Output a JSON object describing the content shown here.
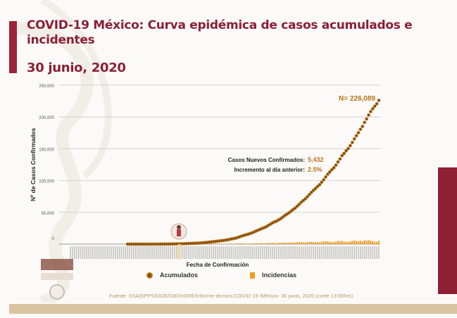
{
  "slide": {
    "title": "COVID-19 México: Curva epidémica de casos acumulados e incidentes",
    "date": "30 junio, 2020",
    "source": "Fuente: SSA|SPPS/DGE/DIE/InDRE/Informe técnico.COVID-19 /México- 30 junio, 2020 (corte 13:00hrs)",
    "accent_color": "#8a2036"
  },
  "chart_data": {
    "type": "line",
    "title": "",
    "xlabel": "Fecha de Confirmación",
    "ylabel": "Nº de Casos Confirmados",
    "ylim": [
      0,
      250000
    ],
    "yticks": [
      0,
      50000,
      100000,
      150000,
      200000,
      250000
    ],
    "ytick_labels": [
      "0",
      "50,000",
      "100,000",
      "150,000",
      "200,000",
      "250,000"
    ],
    "xlim": [
      "2020-01-31",
      "2020-06-30"
    ],
    "grid": true,
    "legend_placement": "bottom",
    "annotations": {
      "total": "N= 226,089",
      "new_cases_label": "Casos Nuevos Confirmados:",
      "new_cases_value": "5,432",
      "increment_label": "Incremento al día anterior:",
      "increment_value": "2.5%"
    },
    "series": [
      {
        "name": "Acumulados",
        "kind": "dotted-line",
        "color": "#b8721a"
      },
      {
        "name": "Incidencias",
        "kind": "bar",
        "color": "#f39a1c"
      }
    ],
    "start_date": "2020-02-28",
    "cumulative": [
      1,
      4,
      5,
      5,
      5,
      5,
      5,
      6,
      7,
      7,
      7,
      7,
      8,
      12,
      26,
      41,
      53,
      82,
      93,
      118,
      164,
      203,
      251,
      316,
      367,
      405,
      475,
      585,
      717,
      848,
      993,
      1094,
      1215,
      1378,
      1510,
      1688,
      1890,
      2143,
      2439,
      2785,
      3181,
      3441,
      3844,
      4219,
      4661,
      5014,
      5399,
      5847,
      6297,
      6875,
      7497,
      8261,
      8772,
      9501,
      10544,
      11633,
      12872,
      13842,
      14677,
      15529,
      16752,
      17799,
      19224,
      20739,
      22088,
      23471,
      24905,
      26025,
      27634,
      29616,
      31522,
      33460,
      35022,
      36327,
      38324,
      40186,
      42595,
      45032,
      47144,
      49219,
      51633,
      54346,
      56594,
      59567,
      62527,
      65856,
      68620,
      71105,
      74560,
      78023,
      81400,
      84627,
      87512,
      90664,
      93435,
      97326,
      101238,
      105680,
      110026,
      113619,
      117103,
      120102,
      124301,
      129184,
      133974,
      139196,
      142690,
      146837,
      150264,
      154863,
      159793,
      165455,
      170485,
      175202,
      180545,
      185122,
      191410,
      196847,
      202951,
      208392,
      212802,
      216852,
      220657,
      226089
    ]
  }
}
